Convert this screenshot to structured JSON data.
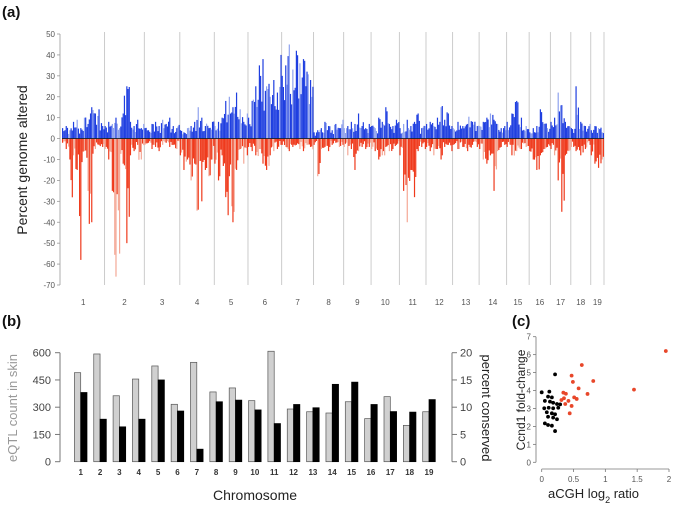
{
  "chart_data": [
    {
      "panel": "(a)",
      "type": "bar",
      "title": "",
      "xlabel": "",
      "ylabel": "Percent genome altered",
      "ylim": [
        -70,
        50
      ],
      "yticks": [
        50,
        40,
        30,
        20,
        10,
        0,
        -10,
        -20,
        -30,
        -40,
        -50,
        -60,
        -70
      ],
      "categories": [
        "1",
        "2",
        "3",
        "4",
        "5",
        "6",
        "7",
        "8",
        "9",
        "10",
        "11",
        "12",
        "13",
        "14",
        "15",
        "16",
        "17",
        "18",
        "19"
      ],
      "colors": {
        "gain": "#1f3fe0",
        "loss": "#ef3a1c",
        "gain_light": "#8fa2ee",
        "loss_light": "#f4a896",
        "divider": "#cccccc"
      },
      "chromosome_relative_lengths": [
        0.96,
        0.9,
        0.8,
        0.78,
        0.76,
        0.76,
        0.72,
        0.68,
        0.62,
        0.64,
        0.6,
        0.6,
        0.6,
        0.62,
        0.51,
        0.48,
        0.46,
        0.45,
        0.3
      ],
      "series": [
        {
          "name": "gain",
          "values_by_chromosome": [
            [
              5,
              6,
              4,
              7,
              8,
              9,
              5,
              6,
              10,
              7,
              15,
              26,
              12,
              14,
              8,
              6
            ],
            [
              6,
              8,
              7,
              10,
              5,
              12,
              20,
              25,
              8,
              6,
              9,
              5,
              7
            ],
            [
              5,
              4,
              7,
              8,
              6,
              9,
              7,
              10,
              6,
              5,
              8
            ],
            [
              4,
              3,
              5,
              6,
              8,
              15,
              10,
              6,
              7,
              5,
              8
            ],
            [
              6,
              8,
              10,
              18,
              12,
              20,
              15,
              22,
              10,
              14,
              8,
              12
            ],
            [
              10,
              18,
              25,
              20,
              35,
              38,
              25,
              30,
              20,
              28,
              15,
              22,
              40
            ],
            [
              30,
              35,
              45,
              28,
              33,
              42,
              36,
              30,
              38,
              32,
              28,
              44
            ],
            [
              3,
              4,
              5,
              8,
              6,
              4,
              7,
              5,
              9
            ],
            [
              5,
              6,
              8,
              7,
              12,
              6,
              9,
              5,
              7
            ],
            [
              6,
              5,
              10,
              8,
              15,
              7,
              6,
              9
            ],
            [
              5,
              7,
              9,
              6,
              8,
              12,
              5,
              6
            ],
            [
              7,
              8,
              6,
              10,
              15,
              9,
              12,
              6
            ],
            [
              5,
              8,
              6,
              7,
              10,
              8,
              6
            ],
            [
              6,
              8,
              10,
              12,
              9,
              7,
              5,
              6
            ],
            [
              8,
              12,
              18,
              10,
              7,
              6
            ],
            [
              3,
              5,
              6,
              14,
              7,
              5
            ],
            [
              8,
              10,
              22,
              16,
              8,
              6
            ],
            [
              5,
              25,
              8,
              6,
              7
            ],
            [
              4,
              6,
              5,
              3
            ]
          ]
        },
        {
          "name": "loss",
          "values_by_chromosome": [
            [
              -2,
              -5,
              -10,
              -27,
              -8,
              -15,
              -58,
              -12,
              -6,
              -25,
              -40,
              -8,
              -5,
              -3,
              -6,
              -4
            ],
            [
              -5,
              -10,
              -25,
              -66,
              -55,
              -12,
              -18,
              -50,
              -8,
              -6,
              -3,
              -10,
              -4
            ],
            [
              -3,
              -2,
              -5,
              -4,
              -6,
              -3,
              -2,
              -4,
              -3,
              -5,
              -2
            ],
            [
              -8,
              -15,
              -10,
              -20,
              -12,
              -34,
              -30,
              -15,
              -25,
              -18,
              -10
            ],
            [
              -12,
              -20,
              -8,
              -28,
              -36,
              -18,
              -40,
              -15,
              -10,
              -5,
              -12,
              -8
            ],
            [
              -4,
              -6,
              -8,
              -10,
              -5,
              -12,
              -15,
              -18,
              -8,
              -6,
              -4,
              -5,
              -3
            ],
            [
              -3,
              -4,
              -6,
              -5,
              -4,
              -3,
              -5,
              -4,
              -6,
              -3,
              -4,
              -5
            ],
            [
              -3,
              -18,
              -5,
              -4,
              -6,
              -3,
              -2,
              -4,
              -3
            ],
            [
              -4,
              -8,
              -5,
              -15,
              -6,
              -4,
              -3,
              -5,
              -4
            ],
            [
              -5,
              -6,
              -10,
              -8,
              -4,
              -6,
              -5,
              -3
            ],
            [
              -8,
              -25,
              -40,
              -15,
              -28,
              -6,
              -4,
              -5
            ],
            [
              -4,
              -6,
              -8,
              -5,
              -10,
              -4,
              -3,
              -6
            ],
            [
              -3,
              -5,
              -4,
              -6,
              -8,
              -3,
              -4
            ],
            [
              -5,
              -10,
              -12,
              -8,
              -25,
              -6,
              -4,
              -3
            ],
            [
              -4,
              -8,
              -6,
              -5,
              -3,
              -4
            ],
            [
              -6,
              -10,
              -15,
              -8,
              -5,
              -4
            ],
            [
              -5,
              -8,
              -20,
              -35,
              -8,
              -6
            ],
            [
              -4,
              -6,
              -8,
              -5,
              -3
            ],
            [
              -8,
              -12,
              -14,
              -10
            ]
          ]
        }
      ]
    },
    {
      "panel": "(b)",
      "type": "bar",
      "title": "",
      "xlabel": "Chromosome",
      "ylabel": "eQTL count  in skin",
      "ylabel_right": "percent conserved",
      "ylim": [
        0,
        600
      ],
      "yticks": [
        0,
        150,
        300,
        450,
        600
      ],
      "ylim_right": [
        0,
        20
      ],
      "yticks_right": [
        0,
        5,
        10,
        15,
        20
      ],
      "categories": [
        "1",
        "2",
        "3",
        "4",
        "5",
        "6",
        "7",
        "8",
        "9",
        "10",
        "11",
        "12",
        "13",
        "14",
        "15",
        "16",
        "17",
        "18",
        "19"
      ],
      "series": [
        {
          "name": "eQTL count in skin",
          "axis": "left",
          "color": "#d0d0d0",
          "values": [
            490,
            593,
            363,
            455,
            527,
            316,
            547,
            384,
            406,
            336,
            608,
            290,
            275,
            268,
            330,
            237,
            358,
            200,
            275
          ]
        },
        {
          "name": "percent conserved",
          "axis": "right",
          "color": "#000000",
          "values": [
            12.7,
            7.8,
            6.4,
            7.8,
            15.0,
            9.3,
            2.3,
            11.0,
            11.3,
            9.5,
            7.0,
            10.5,
            9.9,
            14.2,
            14.6,
            10.5,
            9.2,
            9.1,
            11.4
          ]
        }
      ]
    },
    {
      "panel": "(c)",
      "type": "scatter",
      "title": "",
      "xlabel": "aCGH log2 ratio",
      "ylabel": "Ccnd1 fold-change",
      "xlim": [
        0,
        2
      ],
      "ylim": [
        0,
        7
      ],
      "xticks": [
        0,
        0.5,
        1,
        1.5,
        2
      ],
      "yticks": [
        0,
        1,
        2,
        3,
        4,
        5,
        6,
        7
      ],
      "series": [
        {
          "name": "black",
          "color": "#000000",
          "points": [
            [
              0.21,
              4.9
            ],
            [
              0.0,
              3.9
            ],
            [
              0.12,
              3.94
            ],
            [
              0.1,
              3.66
            ],
            [
              0.16,
              3.62
            ],
            [
              0.05,
              3.42
            ],
            [
              0.13,
              3.38
            ],
            [
              0.18,
              3.32
            ],
            [
              0.24,
              3.25
            ],
            [
              0.29,
              3.23
            ],
            [
              0.04,
              3.01
            ],
            [
              0.11,
              3.04
            ],
            [
              0.18,
              3.01
            ],
            [
              0.26,
              3.04
            ],
            [
              0.08,
              2.79
            ],
            [
              0.16,
              2.73
            ],
            [
              0.21,
              2.68
            ],
            [
              0.1,
              2.54
            ],
            [
              0.18,
              2.49
            ],
            [
              0.24,
              2.4
            ],
            [
              0.05,
              2.17
            ],
            [
              0.1,
              2.08
            ],
            [
              0.16,
              2.04
            ],
            [
              0.21,
              1.74
            ]
          ]
        },
        {
          "name": "red",
          "color": "#e8472a",
          "points": [
            [
              1.95,
              6.2
            ],
            [
              1.45,
              4.05
            ],
            [
              0.63,
              5.42
            ],
            [
              0.81,
              4.53
            ],
            [
              0.47,
              4.83
            ],
            [
              0.49,
              4.48
            ],
            [
              0.58,
              4.12
            ],
            [
              0.72,
              3.81
            ],
            [
              0.34,
              3.88
            ],
            [
              0.38,
              3.82
            ],
            [
              0.51,
              3.62
            ],
            [
              0.55,
              3.53
            ],
            [
              0.35,
              3.57
            ],
            [
              0.42,
              3.42
            ],
            [
              0.37,
              3.25
            ],
            [
              0.47,
              3.14
            ],
            [
              0.44,
              2.73
            ],
            [
              0.31,
              3.47
            ]
          ]
        }
      ]
    }
  ],
  "labels": {
    "panel_a": "(a)",
    "panel_b": "(b)",
    "panel_c": "(c)",
    "a_ylabel": "Percent genome altered",
    "b_ylabel": "eQTL count  in skin",
    "b_ylabel_right": "percent conserved",
    "b_xlabel": "Chromosome",
    "c_ylabel": "Ccnd1 fold-change",
    "c_xlabel_main": "aCGH log",
    "c_xlabel_sub": "2",
    "c_xlabel_tail": " ratio"
  }
}
